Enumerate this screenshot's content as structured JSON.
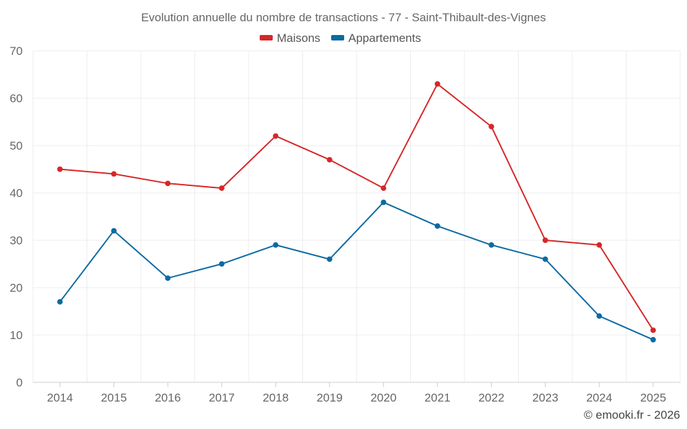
{
  "chart_data": {
    "type": "line",
    "title": "Evolution annuelle du nombre de transactions - 77 - Saint-Thibault-des-Vignes",
    "categories": [
      "2014",
      "2015",
      "2016",
      "2017",
      "2018",
      "2019",
      "2020",
      "2021",
      "2022",
      "2023",
      "2024",
      "2025"
    ],
    "series": [
      {
        "name": "Maisons",
        "color": "#d62728",
        "values": [
          45,
          44,
          42,
          41,
          52,
          47,
          41,
          63,
          54,
          30,
          29,
          11
        ]
      },
      {
        "name": "Appartements",
        "color": "#0b6aa2",
        "values": [
          17,
          32,
          22,
          25,
          29,
          26,
          38,
          33,
          29,
          26,
          14,
          9
        ]
      }
    ],
    "ylim": [
      0,
      70
    ],
    "yticks": [
      "0",
      "10",
      "20",
      "30",
      "40",
      "50",
      "60",
      "70"
    ],
    "legend_position": "top-center",
    "credit": "© emooki.fr - 2026"
  }
}
